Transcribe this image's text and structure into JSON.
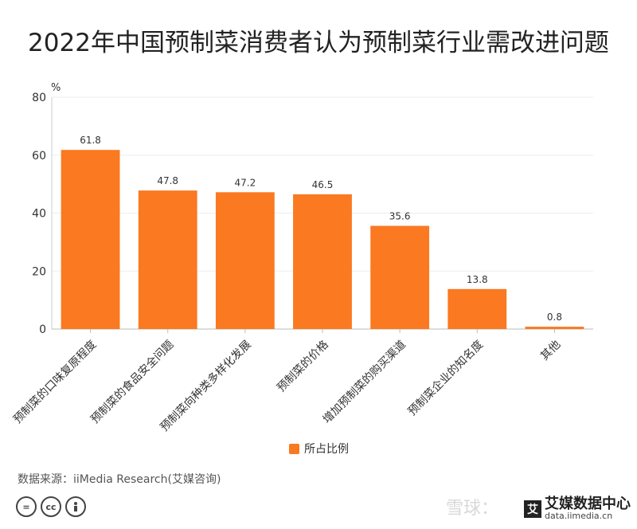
{
  "chart_data": {
    "type": "bar",
    "title": "2022年中国预制菜消费者认为预制菜行业需改进问题",
    "ylabel": "%",
    "ylim": [
      0,
      80
    ],
    "yticks": [
      0,
      20,
      40,
      60,
      80
    ],
    "grid": true,
    "categories": [
      "预制菜的口味复原程度",
      "预制菜的食品安全问题",
      "预制菜向种类多样化发展",
      "预制菜的价格",
      "增加预制菜的购买渠道",
      "预制菜企业的知名度",
      "其他"
    ],
    "series": [
      {
        "name": "所占比例",
        "values": [
          61.8,
          47.8,
          47.2,
          46.5,
          35.6,
          13.8,
          0.8
        ],
        "color": "#fa7921"
      }
    ],
    "legend_position": "bottom-center"
  },
  "source": "数据来源：iiMedia Research(艾媒咨询)",
  "license_icons": [
    "equal-icon",
    "cc-icon",
    "person-icon"
  ],
  "watermark": "雪球：",
  "brand": {
    "name": "艾媒数据中心",
    "url": "data.iimedia.cn"
  }
}
